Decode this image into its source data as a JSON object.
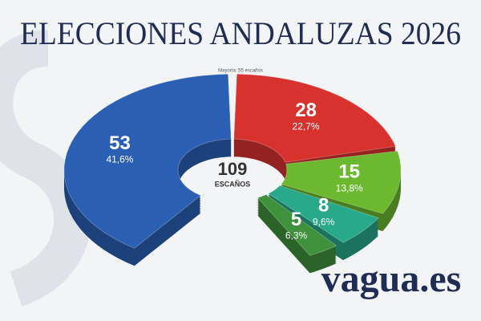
{
  "chart_data": {
    "type": "donut",
    "title": "ELECCIONES ANDALUZAS 2026",
    "note": "Mayoría: 55 escaños",
    "series": [
      {
        "color": "#2b5fb4",
        "values": [
          53,
          28,
          15,
          8,
          5
        ]
      }
    ],
    "colors": [
      "#2b5fb4",
      "#d8322f",
      "#6cb92f",
      "#27a98a",
      "#3f913b"
    ],
    "shares": [
      {
        "value": 41.6,
        "label": "41,6%"
      },
      {
        "value": 22.7,
        "label": "22,7%"
      },
      {
        "value": 13.8,
        "label": "13,8%"
      },
      {
        "value": 9.6,
        "label": "9,6%"
      },
      {
        "value": 6.3,
        "label": "6,3%"
      }
    ],
    "total": 109,
    "total_label": "ESCAÑOS"
  },
  "brand": "vagua.es"
}
